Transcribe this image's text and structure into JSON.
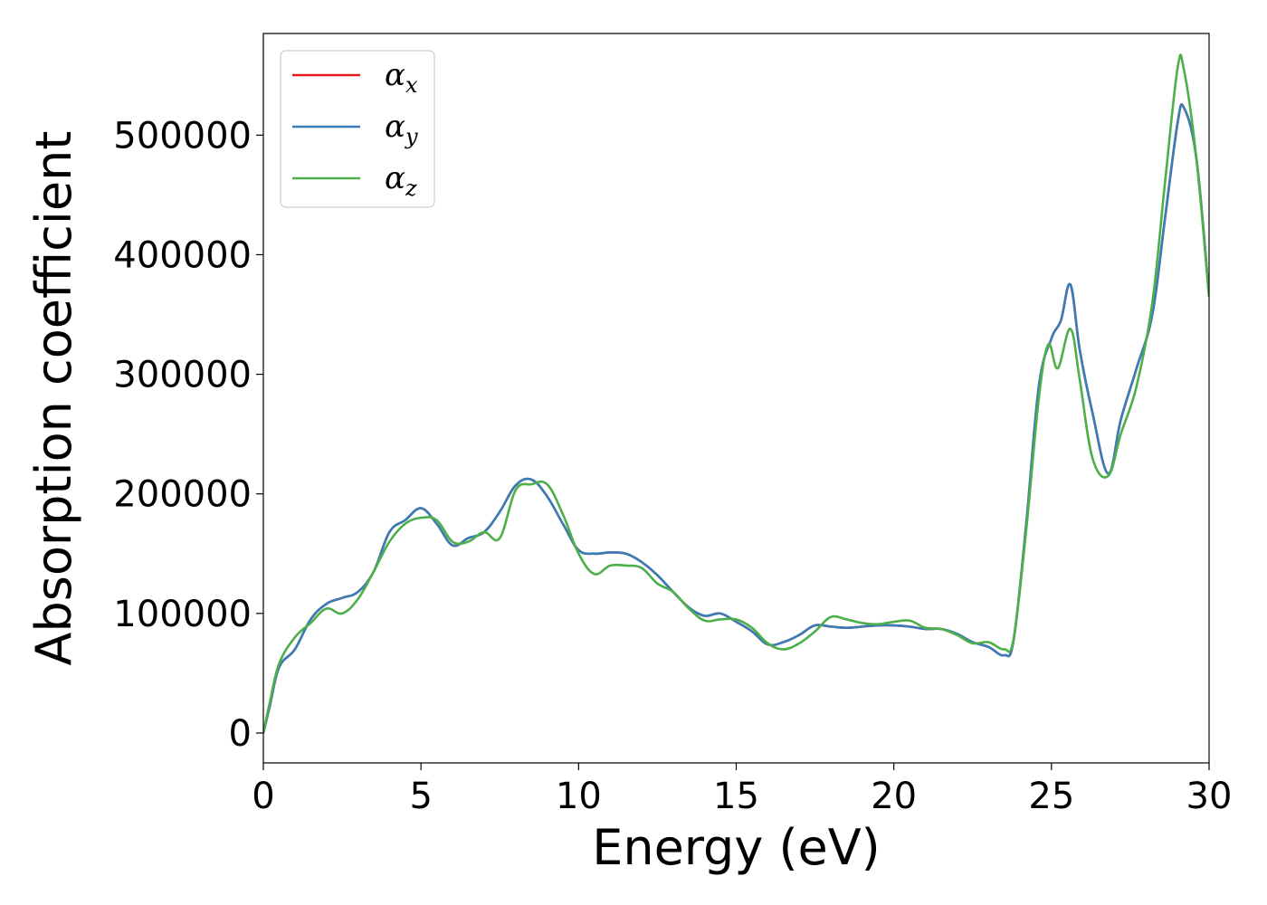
{
  "chart_data": {
    "type": "line",
    "xlabel": "Energy (eV)",
    "ylabel": "Absorption coefficient",
    "xlim": [
      0,
      30
    ],
    "ylim": [
      -25000,
      585000
    ],
    "xticks": [
      "0",
      "5",
      "10",
      "15",
      "20",
      "25",
      "30"
    ],
    "yticks": [
      "0",
      "100000",
      "200000",
      "300000",
      "400000",
      "500000"
    ],
    "grid": false,
    "legend_position": "top-left",
    "series": [
      {
        "name": "α_x",
        "legend_symbol": "α",
        "legend_subscript": "x",
        "color": "#e41a1c",
        "x": [
          0,
          0.2,
          0.5,
          1,
          1.5,
          2,
          2.5,
          3,
          3.5,
          4,
          4.5,
          5,
          5.5,
          6,
          6.5,
          7,
          7.5,
          8,
          8.5,
          9,
          9.5,
          10,
          10.5,
          11,
          11.5,
          12,
          12.5,
          13,
          13.5,
          14,
          14.5,
          15,
          15.5,
          16,
          16.5,
          17,
          17.5,
          18,
          18.5,
          19,
          19.5,
          20,
          20.5,
          21,
          21.5,
          22,
          22.5,
          23,
          23.5,
          23.8,
          24.2,
          24.6,
          25,
          25.3,
          25.6,
          25.9,
          26.3,
          26.8,
          27.2,
          27.7,
          28.2,
          28.6,
          29,
          29.2,
          29.6,
          30
        ],
        "y": [
          0,
          22000,
          55000,
          70000,
          95000,
          108000,
          113000,
          118000,
          135000,
          168000,
          178000,
          188000,
          175000,
          157000,
          163000,
          168000,
          185000,
          207000,
          212000,
          198000,
          175000,
          153000,
          150000,
          151000,
          150000,
          143000,
          132000,
          118000,
          105000,
          98000,
          100000,
          93000,
          85000,
          74000,
          76000,
          82000,
          90000,
          89000,
          88000,
          89000,
          90000,
          90000,
          89000,
          87000,
          87000,
          83000,
          76000,
          72000,
          65000,
          78000,
          175000,
          290000,
          330000,
          345000,
          375000,
          320000,
          268000,
          217000,
          262000,
          305000,
          350000,
          430000,
          510000,
          523000,
          480000,
          365000
        ]
      },
      {
        "name": "α_y",
        "legend_symbol": "α",
        "legend_subscript": "y",
        "color": "#377eb8",
        "x": [
          0,
          0.2,
          0.5,
          1,
          1.5,
          2,
          2.5,
          3,
          3.5,
          4,
          4.5,
          5,
          5.5,
          6,
          6.5,
          7,
          7.5,
          8,
          8.5,
          9,
          9.5,
          10,
          10.5,
          11,
          11.5,
          12,
          12.5,
          13,
          13.5,
          14,
          14.5,
          15,
          15.5,
          16,
          16.5,
          17,
          17.5,
          18,
          18.5,
          19,
          19.5,
          20,
          20.5,
          21,
          21.5,
          22,
          22.5,
          23,
          23.5,
          23.8,
          24.2,
          24.6,
          25,
          25.3,
          25.6,
          25.9,
          26.3,
          26.8,
          27.2,
          27.7,
          28.2,
          28.6,
          29,
          29.2,
          29.6,
          30
        ],
        "y": [
          0,
          22000,
          55000,
          70000,
          95000,
          108000,
          113000,
          118000,
          135000,
          168000,
          178000,
          188000,
          175000,
          157000,
          163000,
          168000,
          185000,
          207000,
          212000,
          198000,
          175000,
          153000,
          150000,
          151000,
          150000,
          143000,
          132000,
          118000,
          105000,
          98000,
          100000,
          93000,
          85000,
          74000,
          76000,
          82000,
          90000,
          89000,
          88000,
          89000,
          90000,
          90000,
          89000,
          87000,
          87000,
          83000,
          76000,
          72000,
          65000,
          78000,
          175000,
          290000,
          330000,
          345000,
          375000,
          320000,
          268000,
          217000,
          262000,
          305000,
          350000,
          430000,
          510000,
          523000,
          480000,
          365000
        ]
      },
      {
        "name": "α_z",
        "legend_symbol": "α",
        "legend_subscript": "z",
        "color": "#4daf4a",
        "x": [
          0,
          0.2,
          0.5,
          1,
          1.5,
          2,
          2.5,
          3,
          3.5,
          4,
          4.5,
          5,
          5.5,
          6,
          6.5,
          7,
          7.5,
          8,
          8.5,
          9,
          9.5,
          10,
          10.5,
          11,
          11.5,
          12,
          12.5,
          13,
          13.5,
          14,
          14.5,
          15,
          15.5,
          16,
          16.5,
          17,
          17.5,
          18,
          18.5,
          19,
          19.5,
          20,
          20.5,
          21,
          21.5,
          22,
          22.5,
          23,
          23.5,
          23.8,
          24.2,
          24.6,
          24.9,
          25.2,
          25.6,
          25.9,
          26.3,
          26.8,
          27.2,
          27.7,
          28.2,
          28.6,
          29,
          29.2,
          29.6,
          30
        ],
        "y": [
          0,
          25000,
          58000,
          80000,
          92000,
          104000,
          100000,
          112000,
          135000,
          160000,
          175000,
          180000,
          178000,
          160000,
          160000,
          168000,
          163000,
          203000,
          208000,
          208000,
          183000,
          150000,
          133000,
          140000,
          140000,
          138000,
          125000,
          118000,
          104000,
          94000,
          95000,
          95000,
          88000,
          75000,
          70000,
          75000,
          85000,
          97000,
          95000,
          92000,
          91000,
          93000,
          94000,
          88000,
          87000,
          82000,
          75000,
          76000,
          70000,
          79000,
          170000,
          280000,
          325000,
          305000,
          338000,
          295000,
          230000,
          215000,
          250000,
          290000,
          360000,
          460000,
          556000,
          555000,
          480000,
          365000
        ]
      }
    ]
  }
}
